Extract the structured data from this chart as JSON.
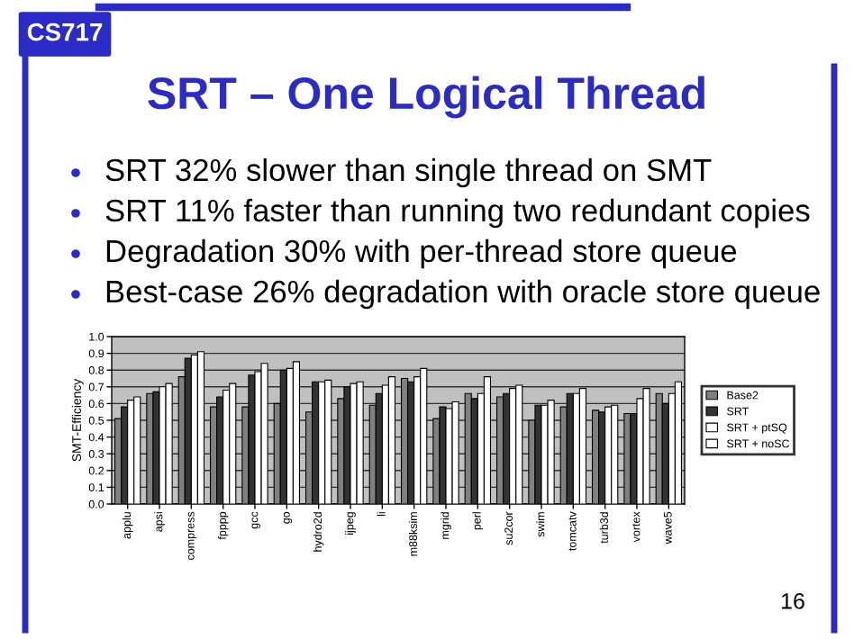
{
  "chart_data": {
    "type": "bar",
    "title": "SRT – One Logical Thread",
    "annotations": [
      "CS717",
      "SRT 32% slower than single thread on SMT",
      "SRT 11% faster than running two redundant copies",
      "Degradation 30% with per-thread store queue",
      "Best-case 26% degradation with oracle store queue",
      "16"
    ],
    "ylabel": "SMT-Efficiency",
    "categories": [
      "applu",
      "apsi",
      "compress",
      "fpppp",
      "gcc",
      "go",
      "hydro2d",
      "ijpeg",
      "li",
      "m88ksim",
      "mgrid",
      "perl",
      "su2cor",
      "swim",
      "tomcatv",
      "turb3d",
      "vortex",
      "wave5"
    ],
    "series": [
      {
        "name": "Base2",
        "color": "#808080",
        "values": [
          0.51,
          0.66,
          0.76,
          0.58,
          0.58,
          0.6,
          0.55,
          0.63,
          0.59,
          0.75,
          0.51,
          0.66,
          0.64,
          0.5,
          0.58,
          0.56,
          0.54,
          0.66
        ]
      },
      {
        "name": "SRT",
        "color": "#333333",
        "values": [
          0.58,
          0.67,
          0.87,
          0.64,
          0.77,
          0.8,
          0.73,
          0.7,
          0.66,
          0.73,
          0.58,
          0.63,
          0.66,
          0.59,
          0.66,
          0.55,
          0.54,
          0.6
        ]
      },
      {
        "name": "SRT + ptSQ",
        "color": "#ffffff",
        "values": [
          0.62,
          0.7,
          0.89,
          0.68,
          0.79,
          0.81,
          0.73,
          0.72,
          0.71,
          0.76,
          0.57,
          0.66,
          0.69,
          0.59,
          0.66,
          0.58,
          0.63,
          0.66
        ]
      },
      {
        "name": "SRT + noSC",
        "color": "#ffffff",
        "values": [
          0.64,
          0.72,
          0.91,
          0.72,
          0.84,
          0.85,
          0.74,
          0.73,
          0.76,
          0.81,
          0.61,
          0.76,
          0.71,
          0.62,
          0.69,
          0.59,
          0.69,
          0.73
        ]
      }
    ],
    "ylim": [
      0,
      1.0
    ],
    "yticks": [
      {
        "value": 0,
        "label": "0.0"
      },
      {
        "value": 0.1,
        "label": "0.1"
      },
      {
        "value": 0.2,
        "label": "0.2"
      },
      {
        "value": 0.3,
        "label": "0.3"
      },
      {
        "value": 0.4,
        "label": "0.4"
      },
      {
        "value": 0.5,
        "label": "0.5"
      },
      {
        "value": 0.6,
        "label": "0.6"
      },
      {
        "value": 0.7,
        "label": "0.7"
      },
      {
        "value": 0.8,
        "label": "0.8"
      },
      {
        "value": 0.9,
        "label": "0.9"
      },
      {
        "value": 1.0,
        "label": "1.0"
      }
    ],
    "grid": "y",
    "legend": "right"
  }
}
